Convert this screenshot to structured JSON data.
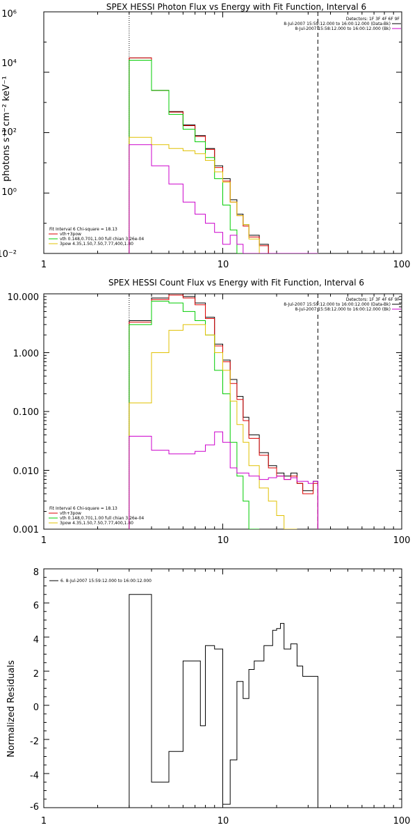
{
  "chart_data": [
    {
      "type": "line",
      "step": true,
      "scale": {
        "x": "log",
        "y": "log"
      },
      "title": "SPEX HESSI Photon Flux vs Energy with Fit Function, Interval 6",
      "ylabel": "photons s⁻¹ cm⁻² keV⁻¹",
      "xlim": [
        1,
        100
      ],
      "ylim": [
        0.01,
        1000000
      ],
      "x_ticks": [
        1,
        10,
        100
      ],
      "x_tick_labels": [
        "1",
        "10",
        "100"
      ],
      "y_ticks": [
        0.01,
        1,
        100,
        10000,
        1000000
      ],
      "y_tick_labels": [
        "10⁻²",
        "10⁰",
        "10²",
        "10⁴",
        "10⁶"
      ],
      "bin_edges": [
        3,
        4,
        5,
        6,
        7,
        8,
        9,
        10,
        11,
        12,
        13,
        14,
        16,
        18,
        20,
        22,
        24,
        26,
        28,
        30,
        32,
        34
      ],
      "vlines": [
        {
          "x": 3,
          "style": "dotted"
        },
        {
          "x": 34,
          "style": "dashed"
        }
      ],
      "legend_header": [
        "Detectors: 1F 3F 4F 6F 9F",
        "8-Jul-2007 15:59:12.000 to 16:00:12.000 (Data-Bk)",
        "8-Jul-2007 15:58:12.000 to 16:00:12.000 (Bk)"
      ],
      "fit_legend": [
        "Fit Interval  6    Chi-square = 18.13",
        "vth+3pow",
        "vth 0.148,0.701,1.00  full chian 3.26e-04",
        "3pow 4.35,1.50,7.50,7.77,400,1.80"
      ],
      "series": [
        {
          "name": "8-Jul-2007 15:59:12.000 to 16:00:12.000 (Data-Bk)",
          "color": "#000000",
          "values": [
            30000,
            2500,
            500,
            180,
            80,
            30,
            8,
            3,
            0.6,
            0.2,
            0.09,
            0.04,
            0.02,
            0.01,
            0.006,
            0.004,
            0.003,
            0.002,
            0.0015,
            0.0015,
            0.002
          ]
        },
        {
          "name": "vth+3pow",
          "color": "#dd0000",
          "values": [
            30000,
            2500,
            480,
            170,
            75,
            28,
            7,
            2.5,
            0.5,
            0.18,
            0.08,
            0.035,
            0.018,
            0.009,
            0.005,
            0.004,
            0.003,
            0.002,
            0.0015,
            0.0015,
            0.002
          ]
        },
        {
          "name": "vth",
          "color": "#00cc00",
          "values": [
            25000,
            2500,
            400,
            130,
            50,
            15,
            3,
            0.4,
            0.06,
            0.009,
            0.001,
            0.0001
          ]
        },
        {
          "name": "3pow",
          "color": "#e0c000",
          "values": [
            70,
            40,
            30,
            25,
            20,
            12,
            5,
            2.3,
            0.5,
            0.18,
            0.09,
            0.03,
            0.01,
            0.004,
            0.0015,
            0.0008,
            0.0003,
            0.0001
          ]
        },
        {
          "name": "8-Jul-2007 15:58:12.000 to 16:00:12.000 (Bk)",
          "color": "#cc00cc",
          "values": [
            40,
            8,
            2,
            0.5,
            0.2,
            0.1,
            0.05,
            0.02,
            0.04,
            0.02,
            0.01,
            0.006,
            0.004,
            0.003,
            0.003,
            0.003,
            0.002,
            0.002,
            0.002,
            0.0015,
            0.0015
          ]
        }
      ]
    },
    {
      "type": "line",
      "step": true,
      "scale": {
        "x": "log",
        "y": "log"
      },
      "title": "SPEX HESSI Count Flux vs Energy with Fit Function, Interval 6",
      "ylabel": "",
      "xlim": [
        1,
        100
      ],
      "ylim": [
        0.001,
        10
      ],
      "x_ticks": [
        1,
        10,
        100
      ],
      "x_tick_labels": [
        "1",
        "10",
        "100"
      ],
      "y_ticks": [
        0.001,
        0.01,
        0.1,
        1,
        10
      ],
      "y_tick_labels": [
        "0.001",
        "0.010",
        "0.100",
        "1.000",
        "10.000"
      ],
      "bin_edges": [
        3,
        4,
        5,
        6,
        7,
        8,
        9,
        10,
        11,
        12,
        13,
        14,
        16,
        18,
        20,
        22,
        24,
        26,
        28,
        30,
        32,
        34
      ],
      "vlines": [
        {
          "x": 3,
          "style": "dotted"
        },
        {
          "x": 34,
          "style": "dashed"
        }
      ],
      "legend_header": [
        "Detectors: 1F 3F 4F 6F 9F",
        "8-Jul-2007 15:59:12.000 to 16:00:12.000 (Data-Bk)",
        "8-Jul-2007 15:58:12.000 to 16:00:12.000 (Bk)"
      ],
      "fit_legend": [
        "Fit Interval  6    Chi-square = 18.13",
        "vth+3pow",
        "vth 0.148,0.701,1.00  full chian 3.26e-04",
        "3pow 4.35,1.50,7.50,7.77,400,1.80"
      ],
      "series": [
        {
          "name": "8-Jul-2007 15:59:12.000 to 16:00:12.000 (Data-Bk)",
          "color": "#000000",
          "values": [
            3.5,
            8.5,
            10,
            9,
            7,
            4,
            1.4,
            0.75,
            0.35,
            0.18,
            0.08,
            0.04,
            0.02,
            0.012,
            0.009,
            0.008,
            0.009,
            0.006,
            0.0045,
            0.0045,
            0.0065
          ]
        },
        {
          "name": "vth+3pow",
          "color": "#dd0000",
          "values": [
            3.3,
            8,
            9.5,
            8.5,
            6.5,
            3.8,
            1.3,
            0.7,
            0.3,
            0.16,
            0.07,
            0.035,
            0.018,
            0.011,
            0.008,
            0.007,
            0.008,
            0.006,
            0.004,
            0.004,
            0.006
          ]
        },
        {
          "name": "vth",
          "color": "#00cc00",
          "values": [
            3,
            7.5,
            7,
            5,
            3.5,
            2,
            0.5,
            0.2,
            0.03,
            0.008,
            0.003,
            0.001
          ]
        },
        {
          "name": "3pow",
          "color": "#e0c000",
          "values": [
            0.14,
            1,
            2.4,
            3,
            3,
            2,
            1,
            0.5,
            0.15,
            0.06,
            0.03,
            0.012,
            0.005,
            0.003,
            0.0017,
            0.001,
            0.0004
          ]
        },
        {
          "name": "8-Jul-2007 15:58:12.000 to 16:00:12.000 (Bk)",
          "color": "#cc00cc",
          "values": [
            0.038,
            0.022,
            0.019,
            0.019,
            0.021,
            0.027,
            0.045,
            0.03,
            0.011,
            0.009,
            0.009,
            0.008,
            0.007,
            0.0075,
            0.008,
            0.007,
            0.0075,
            0.0065,
            0.0065,
            0.006,
            0.0065
          ]
        }
      ]
    },
    {
      "type": "line",
      "step": true,
      "scale": {
        "x": "log",
        "y": "linear"
      },
      "title": "",
      "ylabel": "Normalized Residuals",
      "xlim": [
        1,
        100
      ],
      "ylim": [
        -6,
        8
      ],
      "x_ticks": [
        1,
        10,
        100
      ],
      "x_tick_labels": [
        "1",
        "10",
        "100"
      ],
      "y_ticks": [
        -6,
        -4,
        -2,
        0,
        2,
        4,
        6,
        8
      ],
      "y_tick_labels": [
        "-6",
        "-4",
        "-2",
        "0",
        "2",
        "4",
        "6",
        "8"
      ],
      "legend": [
        "6.  8-Jul-2007 15:59:12.000 to 16:00:12.000"
      ],
      "bin_edges": [
        3,
        4,
        5,
        6,
        7,
        7.5,
        8,
        9,
        10,
        11,
        12,
        13,
        14,
        15,
        16,
        17,
        18,
        19,
        20,
        21,
        22,
        24,
        26,
        28,
        30,
        32,
        34
      ],
      "series": [
        {
          "name": "6.  8-Jul-2007 15:59:12.000 to 16:00:12.000",
          "color": "#000000",
          "values": [
            6.5,
            -4.5,
            -2.7,
            2.6,
            2.6,
            -1.2,
            3.5,
            3.3,
            -5.8,
            -3.2,
            1.4,
            0.4,
            2.1,
            2.6,
            2.6,
            3.5,
            3.5,
            4.4,
            4.5,
            4.8,
            3.3,
            3.6,
            2.3,
            1.7,
            1.7,
            1.7
          ]
        }
      ]
    }
  ]
}
